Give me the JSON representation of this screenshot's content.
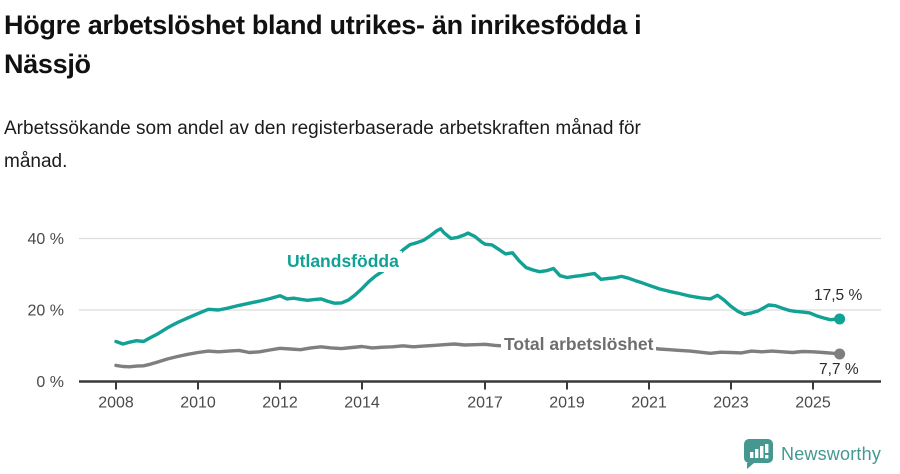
{
  "header": {
    "title_line1": "Högre arbetslöshet bland utrikes- än inrikesfödda i",
    "title_line2": "Nässjö",
    "subtitle_line1": "Arbetssökande som andel av den registerbaserade arbetskraften månad för",
    "subtitle_line2": "månad."
  },
  "colors": {
    "teal": "#12a195",
    "gray_line": "#7f7f7f",
    "gray_label": "#6e6e6e",
    "axis": "#3a3a3a",
    "tick_label": "#4a4a4a",
    "grid": "#dcdcdc",
    "brand": "#459890"
  },
  "footer": {
    "brand": "Newsworthy"
  },
  "chart_data": {
    "type": "line",
    "title": "Högre arbetslöshet bland utrikes- än inrikesfödda i Nässjö",
    "subtitle": "Arbetssökande som andel av den registerbaserade arbetskraften månad för månad.",
    "unit": "%",
    "grid": "horizontal",
    "legend_position": "inline-labels",
    "x_axis": {
      "range": [
        2007.6,
        2026.3
      ],
      "ticks": [
        {
          "value": 2008,
          "label": "2008"
        },
        {
          "value": 2010,
          "label": "2010"
        },
        {
          "value": 2012,
          "label": "2012"
        },
        {
          "value": 2014,
          "label": "2014"
        },
        {
          "value": 2017,
          "label": "2017"
        },
        {
          "value": 2019,
          "label": "2019"
        },
        {
          "value": 2021,
          "label": "2021"
        },
        {
          "value": 2023,
          "label": "2023"
        },
        {
          "value": 2025,
          "label": "2025"
        }
      ]
    },
    "y_axis": {
      "range": [
        0,
        44
      ],
      "ticks": [
        {
          "value": 0,
          "label": "0 %"
        },
        {
          "value": 20,
          "label": "20 %"
        },
        {
          "value": 40,
          "label": "40 %"
        }
      ]
    },
    "series": [
      {
        "name": "Utlandsfödda",
        "color": "#12a195",
        "end_label": "17,5 %",
        "end_value": 17.5,
        "points": [
          [
            2008.0,
            11.2
          ],
          [
            2008.17,
            10.5
          ],
          [
            2008.33,
            11.0
          ],
          [
            2008.5,
            11.4
          ],
          [
            2008.67,
            11.2
          ],
          [
            2008.83,
            12.2
          ],
          [
            2009.0,
            13.2
          ],
          [
            2009.25,
            15.0
          ],
          [
            2009.5,
            16.5
          ],
          [
            2009.75,
            17.8
          ],
          [
            2010.0,
            19.0
          ],
          [
            2010.25,
            20.2
          ],
          [
            2010.5,
            20.0
          ],
          [
            2010.75,
            20.6
          ],
          [
            2011.0,
            21.3
          ],
          [
            2011.25,
            21.9
          ],
          [
            2011.5,
            22.5
          ],
          [
            2011.75,
            23.2
          ],
          [
            2012.0,
            24.0
          ],
          [
            2012.17,
            23.1
          ],
          [
            2012.33,
            23.3
          ],
          [
            2012.5,
            23.0
          ],
          [
            2012.67,
            22.7
          ],
          [
            2012.83,
            22.9
          ],
          [
            2013.0,
            23.1
          ],
          [
            2013.17,
            22.4
          ],
          [
            2013.33,
            21.9
          ],
          [
            2013.5,
            22.0
          ],
          [
            2013.67,
            22.8
          ],
          [
            2013.83,
            24.2
          ],
          [
            2014.0,
            26.0
          ],
          [
            2014.17,
            28.0
          ],
          [
            2014.33,
            29.5
          ],
          [
            2014.5,
            30.8
          ],
          [
            2014.67,
            32.5
          ],
          [
            2014.83,
            35.0
          ],
          [
            2015.0,
            36.8
          ],
          [
            2015.17,
            38.3
          ],
          [
            2015.33,
            38.8
          ],
          [
            2015.5,
            39.5
          ],
          [
            2015.67,
            40.8
          ],
          [
            2015.83,
            42.2
          ],
          [
            2015.92,
            42.7
          ],
          [
            2016.0,
            41.6
          ],
          [
            2016.17,
            40.0
          ],
          [
            2016.33,
            40.3
          ],
          [
            2016.5,
            41.0
          ],
          [
            2016.58,
            41.5
          ],
          [
            2016.75,
            40.6
          ],
          [
            2016.92,
            39.0
          ],
          [
            2017.0,
            38.4
          ],
          [
            2017.17,
            38.2
          ],
          [
            2017.33,
            37.0
          ],
          [
            2017.5,
            35.7
          ],
          [
            2017.67,
            36.0
          ],
          [
            2017.83,
            33.8
          ],
          [
            2018.0,
            31.9
          ],
          [
            2018.17,
            31.2
          ],
          [
            2018.33,
            30.7
          ],
          [
            2018.5,
            31.0
          ],
          [
            2018.67,
            31.6
          ],
          [
            2018.83,
            29.6
          ],
          [
            2019.0,
            29.1
          ],
          [
            2019.17,
            29.4
          ],
          [
            2019.33,
            29.6
          ],
          [
            2019.5,
            29.9
          ],
          [
            2019.67,
            30.2
          ],
          [
            2019.83,
            28.6
          ],
          [
            2020.0,
            28.8
          ],
          [
            2020.17,
            29.0
          ],
          [
            2020.33,
            29.4
          ],
          [
            2020.5,
            28.9
          ],
          [
            2020.67,
            28.2
          ],
          [
            2020.83,
            27.6
          ],
          [
            2021.0,
            26.9
          ],
          [
            2021.25,
            25.9
          ],
          [
            2021.5,
            25.2
          ],
          [
            2021.75,
            24.6
          ],
          [
            2022.0,
            23.9
          ],
          [
            2022.25,
            23.4
          ],
          [
            2022.5,
            23.1
          ],
          [
            2022.67,
            24.1
          ],
          [
            2022.83,
            22.8
          ],
          [
            2023.0,
            21.0
          ],
          [
            2023.17,
            19.6
          ],
          [
            2023.33,
            18.8
          ],
          [
            2023.5,
            19.2
          ],
          [
            2023.67,
            19.8
          ],
          [
            2023.83,
            20.8
          ],
          [
            2023.92,
            21.4
          ],
          [
            2024.08,
            21.2
          ],
          [
            2024.25,
            20.5
          ],
          [
            2024.42,
            19.9
          ],
          [
            2024.58,
            19.6
          ],
          [
            2024.75,
            19.4
          ],
          [
            2024.92,
            19.2
          ],
          [
            2025.08,
            18.4
          ],
          [
            2025.25,
            17.8
          ],
          [
            2025.42,
            17.3
          ],
          [
            2025.65,
            17.5
          ]
        ]
      },
      {
        "name": "Total arbetslöshet",
        "color": "#7f7f7f",
        "end_label": "7,7 %",
        "end_value": 7.7,
        "points": [
          [
            2008.0,
            4.5
          ],
          [
            2008.17,
            4.2
          ],
          [
            2008.33,
            4.1
          ],
          [
            2008.5,
            4.3
          ],
          [
            2008.67,
            4.4
          ],
          [
            2008.83,
            4.8
          ],
          [
            2009.0,
            5.4
          ],
          [
            2009.25,
            6.3
          ],
          [
            2009.5,
            7.0
          ],
          [
            2009.75,
            7.6
          ],
          [
            2010.0,
            8.1
          ],
          [
            2010.25,
            8.5
          ],
          [
            2010.5,
            8.3
          ],
          [
            2010.75,
            8.5
          ],
          [
            2011.0,
            8.7
          ],
          [
            2011.25,
            8.1
          ],
          [
            2011.5,
            8.3
          ],
          [
            2011.75,
            8.8
          ],
          [
            2012.0,
            9.3
          ],
          [
            2012.25,
            9.1
          ],
          [
            2012.5,
            8.9
          ],
          [
            2012.75,
            9.4
          ],
          [
            2013.0,
            9.7
          ],
          [
            2013.25,
            9.4
          ],
          [
            2013.5,
            9.2
          ],
          [
            2013.75,
            9.5
          ],
          [
            2014.0,
            9.8
          ],
          [
            2014.25,
            9.4
          ],
          [
            2014.5,
            9.6
          ],
          [
            2014.75,
            9.7
          ],
          [
            2015.0,
            10.0
          ],
          [
            2015.25,
            9.7
          ],
          [
            2015.5,
            9.9
          ],
          [
            2015.75,
            10.1
          ],
          [
            2016.0,
            10.3
          ],
          [
            2016.25,
            10.5
          ],
          [
            2016.5,
            10.2
          ],
          [
            2016.75,
            10.3
          ],
          [
            2017.0,
            10.4
          ],
          [
            2017.25,
            10.1
          ],
          [
            2017.5,
            9.9
          ],
          [
            2017.75,
            9.8
          ],
          [
            2018.0,
            9.9
          ],
          [
            2018.25,
            9.6
          ],
          [
            2018.5,
            9.4
          ],
          [
            2018.75,
            9.3
          ],
          [
            2019.0,
            9.3
          ],
          [
            2019.25,
            9.2
          ],
          [
            2019.5,
            9.2
          ],
          [
            2019.75,
            9.4
          ],
          [
            2020.0,
            9.6
          ],
          [
            2020.25,
            9.9
          ],
          [
            2020.5,
            10.1
          ],
          [
            2020.75,
            9.8
          ],
          [
            2021.0,
            9.4
          ],
          [
            2021.25,
            9.1
          ],
          [
            2021.5,
            8.9
          ],
          [
            2021.75,
            8.7
          ],
          [
            2022.0,
            8.5
          ],
          [
            2022.25,
            8.2
          ],
          [
            2022.5,
            7.9
          ],
          [
            2022.75,
            8.2
          ],
          [
            2023.0,
            8.1
          ],
          [
            2023.25,
            8.0
          ],
          [
            2023.5,
            8.5
          ],
          [
            2023.75,
            8.3
          ],
          [
            2024.0,
            8.5
          ],
          [
            2024.25,
            8.3
          ],
          [
            2024.5,
            8.1
          ],
          [
            2024.75,
            8.4
          ],
          [
            2025.0,
            8.3
          ],
          [
            2025.25,
            8.1
          ],
          [
            2025.5,
            7.9
          ],
          [
            2025.65,
            7.7
          ]
        ]
      }
    ]
  }
}
